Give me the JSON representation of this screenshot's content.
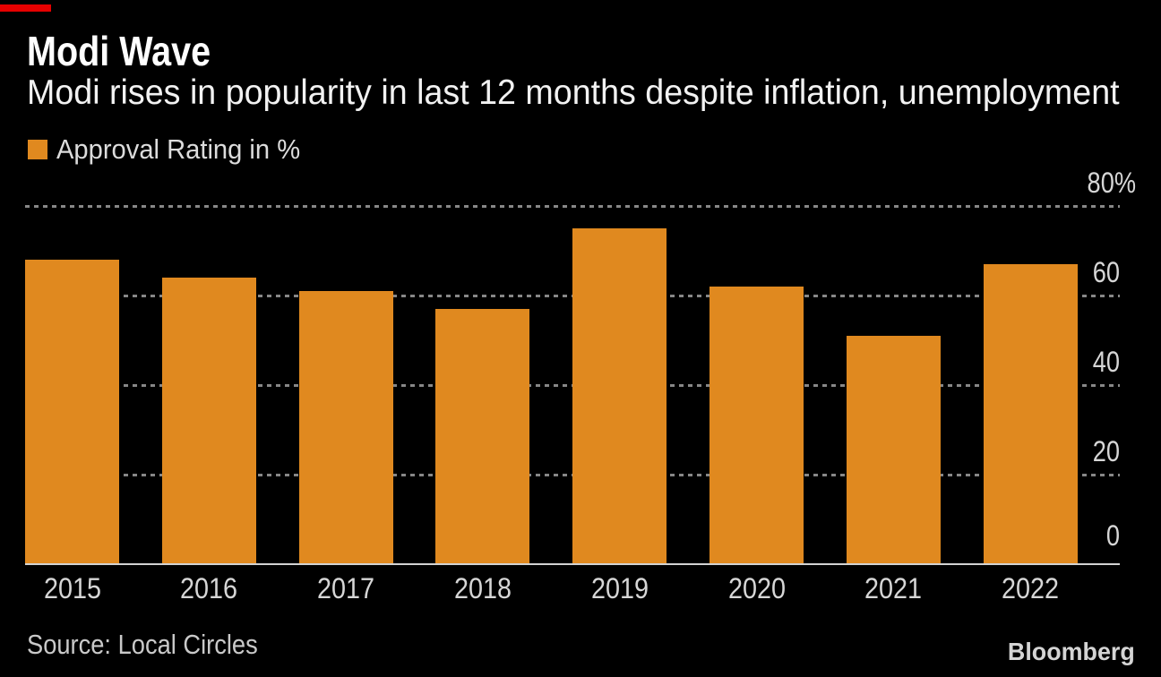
{
  "accent_bar_color": "#e60000",
  "header": {
    "title": "Modi Wave",
    "subtitle": "Modi rises in popularity in last 12 months despite inflation, unemployment"
  },
  "legend": {
    "label": "Approval Rating in %",
    "swatch_color": "#e0891f"
  },
  "chart_data": {
    "type": "bar",
    "title": "Modi Wave",
    "subtitle": "Modi rises in popularity in last 12 months despite inflation, unemployment",
    "series_name": "Approval Rating in %",
    "categories": [
      "2015",
      "2016",
      "2017",
      "2018",
      "2019",
      "2020",
      "2021",
      "2022"
    ],
    "values": [
      68,
      64,
      61,
      57,
      75,
      62,
      51,
      67
    ],
    "ylim": [
      0,
      80
    ],
    "yticks": [
      {
        "label": "80%",
        "value": 80
      },
      {
        "label": "60",
        "value": 60
      },
      {
        "label": "40",
        "value": 40
      },
      {
        "label": "20",
        "value": 20
      },
      {
        "label": "0",
        "value": 0
      }
    ],
    "grid": "dotted horizontal lines",
    "legend_position": "top-left",
    "bar_color": "#e0891f"
  },
  "footer": {
    "source": "Source: Local Circles",
    "brand": "Bloomberg"
  }
}
